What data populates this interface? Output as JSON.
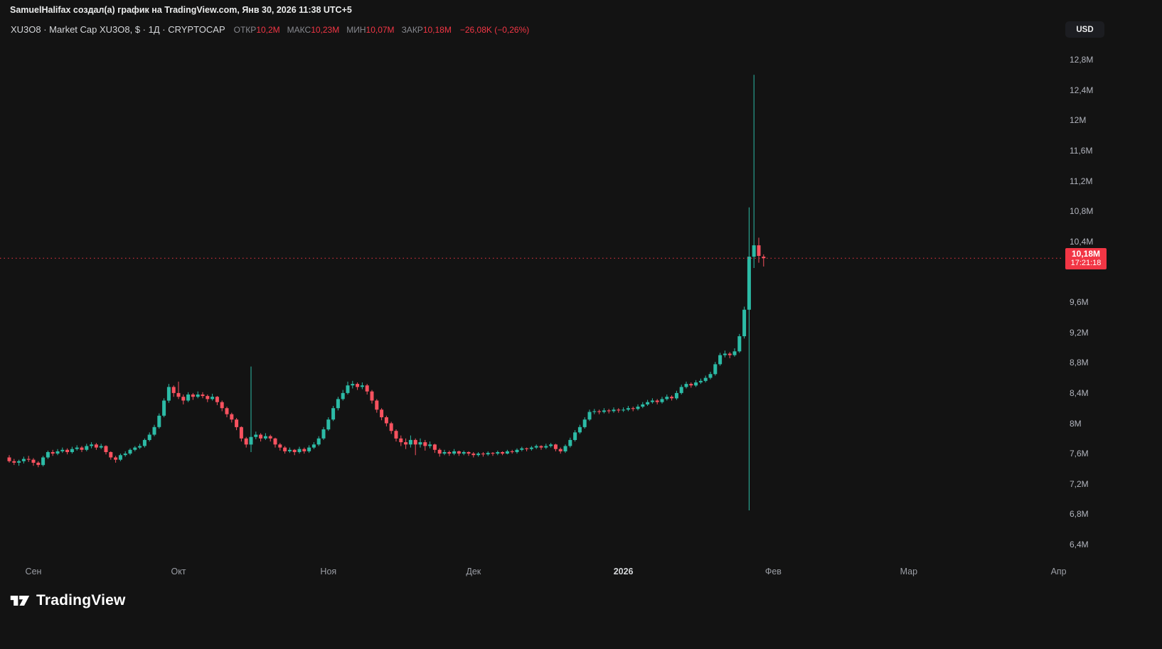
{
  "attribution": "SamuelHalifax создал(а) график на TradingView.com, Янв 30, 2026 11:38 UTC+5",
  "toolbar": {
    "currency_label": "USD"
  },
  "legend": {
    "symbol_title": "XU3O8 · Market Cap XU3O8, $ · 1Д · CRYPTOCAP",
    "ohlc": [
      {
        "label": "ОТКР",
        "value": "10,2M"
      },
      {
        "label": "МАКС",
        "value": "10,23M"
      },
      {
        "label": "МИН",
        "value": "10,07M"
      },
      {
        "label": "ЗАКР",
        "value": "10,18M"
      }
    ],
    "change": "−26,08K (−0,26%)"
  },
  "price_label": {
    "price": "10,18M",
    "countdown": "17:21:18"
  },
  "logo_text": "TradingView",
  "colors": {
    "up": "#2cbba6",
    "down": "#f7525f",
    "accent_red": "#f23645",
    "axis_text": "#b2b5be",
    "background": "#131313"
  },
  "chart_data": {
    "type": "candlestick",
    "title": "XU3O8 Market Cap",
    "symbol": "XU3O8",
    "exchange": "CRYPTOCAP",
    "interval": "1Д",
    "unit": "millions USD",
    "ylim": [
      6.4,
      12.8
    ],
    "current_price": 10.18,
    "grid": false,
    "y_ticks": [
      {
        "v": 12.8,
        "label": "12,8M"
      },
      {
        "v": 12.4,
        "label": "12,4M"
      },
      {
        "v": 12.0,
        "label": "12M"
      },
      {
        "v": 11.6,
        "label": "11,6M"
      },
      {
        "v": 11.2,
        "label": "11,2M"
      },
      {
        "v": 10.8,
        "label": "10,8M"
      },
      {
        "v": 10.4,
        "label": "10,4M"
      },
      {
        "v": 9.6,
        "label": "9,6M"
      },
      {
        "v": 9.2,
        "label": "9,2M"
      },
      {
        "v": 8.8,
        "label": "8,8M"
      },
      {
        "v": 8.4,
        "label": "8,4M"
      },
      {
        "v": 8.0,
        "label": "8M"
      },
      {
        "v": 7.6,
        "label": "7,6M"
      },
      {
        "v": 7.2,
        "label": "7,2M"
      },
      {
        "v": 6.8,
        "label": "6,8M"
      },
      {
        "v": 6.4,
        "label": "6,4M"
      }
    ],
    "x_ticks": [
      {
        "i": 5,
        "label": "Сен",
        "major": false
      },
      {
        "i": 35,
        "label": "Окт",
        "major": false
      },
      {
        "i": 66,
        "label": "Ноя",
        "major": false
      },
      {
        "i": 96,
        "label": "Дек",
        "major": false
      },
      {
        "i": 127,
        "label": "2026",
        "major": true
      },
      {
        "i": 158,
        "label": "Фев",
        "major": false
      },
      {
        "i": 186,
        "label": "Мар",
        "major": false
      },
      {
        "i": 217,
        "label": "Апр",
        "major": false
      }
    ],
    "candles_format": [
      "open",
      "high",
      "low",
      "close"
    ],
    "candles": [
      [
        7.55,
        7.58,
        7.48,
        7.5
      ],
      [
        7.5,
        7.53,
        7.45,
        7.48
      ],
      [
        7.48,
        7.52,
        7.44,
        7.5
      ],
      [
        7.5,
        7.56,
        7.47,
        7.53
      ],
      [
        7.53,
        7.57,
        7.49,
        7.52
      ],
      [
        7.52,
        7.54,
        7.44,
        7.48
      ],
      [
        7.48,
        7.5,
        7.42,
        7.45
      ],
      [
        7.45,
        7.57,
        7.43,
        7.55
      ],
      [
        7.55,
        7.64,
        7.53,
        7.62
      ],
      [
        7.62,
        7.65,
        7.57,
        7.6
      ],
      [
        7.6,
        7.66,
        7.58,
        7.63
      ],
      [
        7.63,
        7.68,
        7.61,
        7.65
      ],
      [
        7.65,
        7.67,
        7.59,
        7.62
      ],
      [
        7.62,
        7.69,
        7.6,
        7.66
      ],
      [
        7.66,
        7.71,
        7.64,
        7.68
      ],
      [
        7.68,
        7.7,
        7.62,
        7.65
      ],
      [
        7.65,
        7.73,
        7.63,
        7.7
      ],
      [
        7.7,
        7.75,
        7.67,
        7.72
      ],
      [
        7.72,
        7.74,
        7.65,
        7.68
      ],
      [
        7.68,
        7.73,
        7.66,
        7.7
      ],
      [
        7.7,
        7.71,
        7.59,
        7.62
      ],
      [
        7.62,
        7.63,
        7.52,
        7.55
      ],
      [
        7.55,
        7.57,
        7.48,
        7.52
      ],
      [
        7.52,
        7.6,
        7.5,
        7.58
      ],
      [
        7.58,
        7.63,
        7.56,
        7.6
      ],
      [
        7.6,
        7.67,
        7.58,
        7.65
      ],
      [
        7.65,
        7.7,
        7.63,
        7.68
      ],
      [
        7.68,
        7.73,
        7.66,
        7.7
      ],
      [
        7.7,
        7.8,
        7.68,
        7.78
      ],
      [
        7.78,
        7.88,
        7.76,
        7.85
      ],
      [
        7.85,
        7.98,
        7.83,
        7.95
      ],
      [
        7.95,
        8.13,
        7.93,
        8.1
      ],
      [
        8.1,
        8.33,
        8.08,
        8.3
      ],
      [
        8.3,
        8.52,
        8.27,
        8.48
      ],
      [
        8.48,
        8.5,
        8.35,
        8.4
      ],
      [
        8.4,
        8.55,
        8.32,
        8.35
      ],
      [
        8.35,
        8.38,
        8.25,
        8.3
      ],
      [
        8.3,
        8.41,
        8.28,
        8.38
      ],
      [
        8.38,
        8.4,
        8.31,
        8.35
      ],
      [
        8.35,
        8.42,
        8.33,
        8.38
      ],
      [
        8.38,
        8.41,
        8.33,
        8.36
      ],
      [
        8.36,
        8.38,
        8.28,
        8.32
      ],
      [
        8.32,
        8.39,
        8.3,
        8.35
      ],
      [
        8.35,
        8.36,
        8.24,
        8.28
      ],
      [
        8.28,
        8.3,
        8.16,
        8.2
      ],
      [
        8.2,
        8.22,
        8.08,
        8.12
      ],
      [
        8.12,
        8.14,
        8.01,
        8.05
      ],
      [
        8.05,
        8.07,
        7.91,
        7.95
      ],
      [
        7.95,
        7.96,
        7.76,
        7.8
      ],
      [
        7.8,
        7.82,
        7.68,
        7.72
      ],
      [
        7.72,
        8.75,
        7.62,
        7.82
      ],
      [
        7.82,
        7.89,
        7.79,
        7.85
      ],
      [
        7.85,
        7.87,
        7.76,
        7.8
      ],
      [
        7.8,
        7.87,
        7.78,
        7.83
      ],
      [
        7.83,
        7.85,
        7.76,
        7.8
      ],
      [
        7.8,
        7.81,
        7.68,
        7.72
      ],
      [
        7.72,
        7.74,
        7.64,
        7.68
      ],
      [
        7.68,
        7.7,
        7.6,
        7.63
      ],
      [
        7.63,
        7.68,
        7.61,
        7.65
      ],
      [
        7.65,
        7.66,
        7.58,
        7.62
      ],
      [
        7.62,
        7.69,
        7.6,
        7.66
      ],
      [
        7.66,
        7.68,
        7.6,
        7.63
      ],
      [
        7.63,
        7.71,
        7.61,
        7.68
      ],
      [
        7.68,
        7.75,
        7.66,
        7.72
      ],
      [
        7.72,
        7.83,
        7.7,
        7.8
      ],
      [
        7.8,
        7.95,
        7.78,
        7.92
      ],
      [
        7.92,
        8.08,
        7.9,
        8.05
      ],
      [
        8.05,
        8.23,
        8.03,
        8.2
      ],
      [
        8.2,
        8.35,
        8.17,
        8.32
      ],
      [
        8.32,
        8.44,
        8.3,
        8.4
      ],
      [
        8.4,
        8.55,
        8.38,
        8.5
      ],
      [
        8.5,
        8.56,
        8.46,
        8.52
      ],
      [
        8.52,
        8.54,
        8.44,
        8.48
      ],
      [
        8.48,
        8.54,
        8.45,
        8.5
      ],
      [
        8.5,
        8.52,
        8.38,
        8.42
      ],
      [
        8.42,
        8.44,
        8.26,
        8.3
      ],
      [
        8.3,
        8.32,
        8.14,
        8.18
      ],
      [
        8.18,
        8.2,
        8.04,
        8.08
      ],
      [
        8.08,
        8.1,
        7.96,
        8.0
      ],
      [
        8.0,
        8.02,
        7.86,
        7.9
      ],
      [
        7.9,
        7.92,
        7.76,
        7.8
      ],
      [
        7.8,
        7.84,
        7.7,
        7.75
      ],
      [
        7.75,
        7.8,
        7.66,
        7.72
      ],
      [
        7.72,
        7.84,
        7.68,
        7.78
      ],
      [
        7.78,
        7.8,
        7.58,
        7.72
      ],
      [
        7.72,
        7.8,
        7.68,
        7.75
      ],
      [
        7.75,
        7.78,
        7.64,
        7.7
      ],
      [
        7.7,
        7.76,
        7.67,
        7.72
      ],
      [
        7.72,
        7.73,
        7.61,
        7.65
      ],
      [
        7.65,
        7.67,
        7.56,
        7.6
      ],
      [
        7.6,
        7.65,
        7.58,
        7.62
      ],
      [
        7.62,
        7.64,
        7.57,
        7.6
      ],
      [
        7.6,
        7.66,
        7.58,
        7.63
      ],
      [
        7.63,
        7.64,
        7.57,
        7.6
      ],
      [
        7.6,
        7.64,
        7.58,
        7.62
      ],
      [
        7.62,
        7.63,
        7.57,
        7.6
      ],
      [
        7.6,
        7.62,
        7.55,
        7.58
      ],
      [
        7.58,
        7.62,
        7.56,
        7.6
      ],
      [
        7.6,
        7.62,
        7.56,
        7.59
      ],
      [
        7.59,
        7.63,
        7.57,
        7.61
      ],
      [
        7.61,
        7.62,
        7.57,
        7.6
      ],
      [
        7.6,
        7.64,
        7.58,
        7.62
      ],
      [
        7.62,
        7.63,
        7.58,
        7.6
      ],
      [
        7.6,
        7.65,
        7.59,
        7.63
      ],
      [
        7.63,
        7.65,
        7.6,
        7.62
      ],
      [
        7.62,
        7.67,
        7.6,
        7.65
      ],
      [
        7.65,
        7.69,
        7.63,
        7.67
      ],
      [
        7.67,
        7.68,
        7.63,
        7.66
      ],
      [
        7.66,
        7.7,
        7.64,
        7.68
      ],
      [
        7.68,
        7.72,
        7.66,
        7.7
      ],
      [
        7.7,
        7.71,
        7.65,
        7.68
      ],
      [
        7.68,
        7.73,
        7.66,
        7.7
      ],
      [
        7.7,
        7.74,
        7.68,
        7.72
      ],
      [
        7.72,
        7.73,
        7.63,
        7.66
      ],
      [
        7.66,
        7.68,
        7.6,
        7.63
      ],
      [
        7.63,
        7.72,
        7.61,
        7.7
      ],
      [
        7.7,
        7.81,
        7.68,
        7.78
      ],
      [
        7.78,
        7.91,
        7.76,
        7.88
      ],
      [
        7.88,
        7.98,
        7.86,
        7.95
      ],
      [
        7.95,
        8.08,
        7.93,
        8.05
      ],
      [
        8.05,
        8.18,
        8.03,
        8.15
      ],
      [
        8.15,
        8.19,
        8.12,
        8.16
      ],
      [
        8.16,
        8.18,
        8.12,
        8.15
      ],
      [
        8.15,
        8.2,
        8.13,
        8.17
      ],
      [
        8.17,
        8.19,
        8.13,
        8.16
      ],
      [
        8.16,
        8.21,
        8.14,
        8.18
      ],
      [
        8.18,
        8.2,
        8.14,
        8.17
      ],
      [
        8.17,
        8.21,
        8.15,
        8.18
      ],
      [
        8.18,
        8.23,
        8.16,
        8.2
      ],
      [
        8.2,
        8.22,
        8.16,
        8.19
      ],
      [
        8.19,
        8.25,
        8.17,
        8.22
      ],
      [
        8.22,
        8.28,
        8.2,
        8.25
      ],
      [
        8.25,
        8.31,
        8.23,
        8.28
      ],
      [
        8.28,
        8.33,
        8.26,
        8.3
      ],
      [
        8.3,
        8.32,
        8.25,
        8.28
      ],
      [
        8.28,
        8.35,
        8.26,
        8.32
      ],
      [
        8.32,
        8.38,
        8.3,
        8.35
      ],
      [
        8.35,
        8.37,
        8.3,
        8.33
      ],
      [
        8.33,
        8.43,
        8.31,
        8.4
      ],
      [
        8.4,
        8.51,
        8.38,
        8.48
      ],
      [
        8.48,
        8.55,
        8.46,
        8.52
      ],
      [
        8.52,
        8.54,
        8.47,
        8.5
      ],
      [
        8.5,
        8.57,
        8.48,
        8.54
      ],
      [
        8.54,
        8.59,
        8.52,
        8.56
      ],
      [
        8.56,
        8.63,
        8.54,
        8.6
      ],
      [
        8.6,
        8.68,
        8.58,
        8.65
      ],
      [
        8.65,
        8.81,
        8.63,
        8.78
      ],
      [
        8.78,
        8.93,
        8.76,
        8.9
      ],
      [
        8.9,
        8.96,
        8.87,
        8.92
      ],
      [
        8.92,
        8.94,
        8.86,
        8.9
      ],
      [
        8.9,
        8.99,
        8.88,
        8.95
      ],
      [
        8.95,
        9.18,
        8.93,
        9.15
      ],
      [
        9.15,
        9.54,
        9.12,
        9.5
      ],
      [
        9.5,
        10.85,
        6.85,
        10.2
      ],
      [
        10.2,
        12.6,
        10.05,
        10.35
      ],
      [
        10.35,
        10.45,
        10.12,
        10.21
      ],
      [
        10.2,
        10.23,
        10.07,
        10.18
      ]
    ]
  }
}
